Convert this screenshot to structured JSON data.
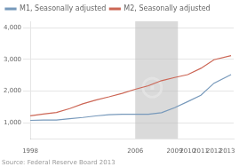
{
  "chart_data": {
    "type": "line",
    "series": [
      {
        "name": "M1, Seasonally adjusted",
        "color": "#7799bb",
        "x": [
          1998,
          1999,
          2000,
          2001,
          2002,
          2003,
          2004,
          2005,
          2006,
          2007,
          2008,
          2009,
          2010,
          2011,
          2012,
          2013.3
        ],
        "values": [
          1080,
          1090,
          1090,
          1130,
          1170,
          1220,
          1260,
          1270,
          1270,
          1270,
          1320,
          1480,
          1670,
          1870,
          2250,
          2520
        ]
      },
      {
        "name": "M2, Seasonally adjusted",
        "color": "#cc6655",
        "x": [
          1998,
          1999,
          2000,
          2001,
          2002,
          2003,
          2004,
          2005,
          2006,
          2007,
          2008,
          2009,
          2010,
          2011,
          2012,
          2013.3
        ],
        "values": [
          1220,
          1280,
          1330,
          1450,
          1600,
          1720,
          1820,
          1930,
          2060,
          2170,
          2330,
          2430,
          2520,
          2720,
          2990,
          3120
        ]
      }
    ],
    "shaded_range": [
      2006.0,
      2009.25
    ],
    "shaded_color": "#bbbbbb",
    "xlim": [
      1998.0,
      2013.5
    ],
    "xticks": [
      1998,
      2006,
      2009,
      2010,
      2011,
      2012,
      2013
    ],
    "ylim": [
      500,
      4200
    ],
    "yticks": [
      {
        "value": 1000,
        "label": "1,000"
      },
      {
        "value": 2000,
        "label": "2,000"
      },
      {
        "value": 3000,
        "label": "3,000"
      },
      {
        "value": 4000,
        "label": "4,000"
      }
    ],
    "grid": "y",
    "legend": "upper left",
    "source": "Source: Federal Reserve Board 2013",
    "annotations": [
      "⊙"
    ],
    "background_color": "#ffffff"
  }
}
